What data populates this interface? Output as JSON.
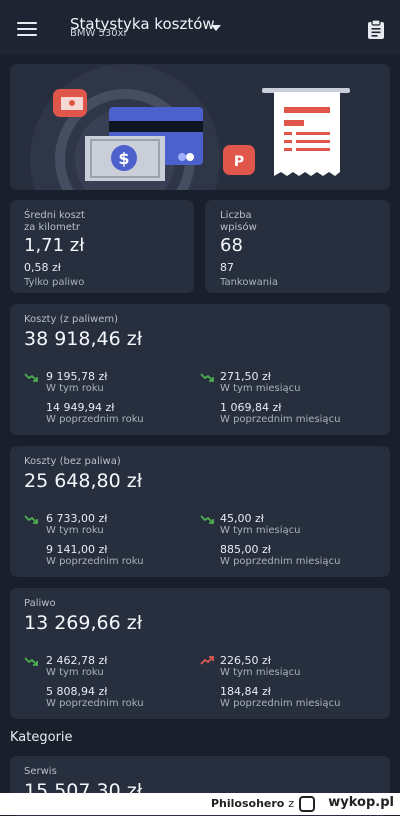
{
  "header": {
    "title": "Statystyka kosztów",
    "subtitle": "BMW 530xi"
  },
  "summary": {
    "per_km": {
      "label_line1": "Średni koszt",
      "label_line2": "za kilometr",
      "value": "1,71 zł",
      "sub_value": "0,58 zł",
      "sub_label": "Tylko paliwo"
    },
    "entries": {
      "label_line1": "Liczba",
      "label_line2": "wpisów",
      "value": "68",
      "sub_value": "87",
      "sub_label": "Tankowania"
    }
  },
  "sections": [
    {
      "title": "Koszty (z paliwem)",
      "total": "38 918,46 zł",
      "year_value": "9 195,78 zł",
      "year_label": "W tym roku",
      "month_value": "271,50 zł",
      "month_label": "W tym miesiącu",
      "prev_year_value": "14 949,94 zł",
      "prev_year_label": "W poprzednim roku",
      "prev_month_value": "1 069,84 zł",
      "prev_month_label": "W poprzednim miesiącu",
      "year_trend": "down",
      "month_trend": "down"
    },
    {
      "title": "Koszty (bez paliwa)",
      "total": "25 648,80 zł",
      "year_value": "6 733,00 zł",
      "year_label": "W tym roku",
      "month_value": "45,00 zł",
      "month_label": "W tym miesiącu",
      "prev_year_value": "9 141,00 zł",
      "prev_year_label": "W poprzednim roku",
      "prev_month_value": "885,00 zł",
      "prev_month_label": "W poprzednim miesiącu",
      "year_trend": "down",
      "month_trend": "down"
    },
    {
      "title": "Paliwo",
      "total": "13 269,66 zł",
      "year_value": "2 462,78 zł",
      "year_label": "W tym roku",
      "month_value": "226,50 zł",
      "month_label": "W tym miesiącu",
      "prev_year_value": "5 808,94 zł",
      "prev_year_label": "W poprzednim roku",
      "prev_month_value": "184,84 zł",
      "prev_month_label": "W poprzednim miesiącu",
      "year_trend": "down",
      "month_trend": "up"
    }
  ],
  "categories": {
    "heading": "Kategorie",
    "first": {
      "title": "Serwis",
      "total": "15 507,30 zł"
    }
  },
  "footer": {
    "user": "Philosohero",
    "separator": "z",
    "logo_text": "wykop.pl"
  },
  "colors": {
    "trend_down": "#4caf50",
    "trend_up": "#e05a4f",
    "background": "#1a1f2c",
    "card": "#272e3d"
  }
}
